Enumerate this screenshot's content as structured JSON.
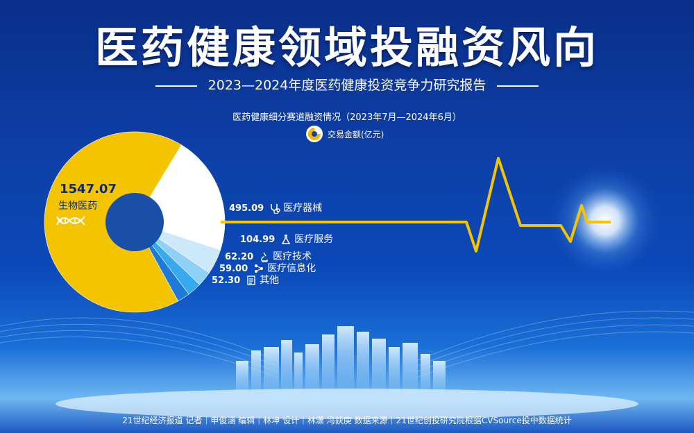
{
  "header": {
    "title": "医药健康领域投融资风向",
    "subtitle": "2023—2024年度医药健康投资竞争力研究报告"
  },
  "chart_data": {
    "type": "pie",
    "title": "医药健康细分赛道融资情况（2023年7月—2024年6月）",
    "legend": [
      {
        "label": "交易金额(亿元)",
        "color": "#f5b800"
      }
    ],
    "slices": [
      {
        "name": "生物医药",
        "value": 1547.07,
        "color": "#f5c400",
        "label_text": "1547.07"
      },
      {
        "name": "医疗器械",
        "value": 495.09,
        "color": "#ffffff",
        "label_text": "495.09"
      },
      {
        "name": "医疗服务",
        "value": 104.99,
        "color": "#cde8fb",
        "label_text": "104.99"
      },
      {
        "name": "医疗技术",
        "value": 62.2,
        "color": "#8fd0f7",
        "label_text": "62.20"
      },
      {
        "name": "医疗信息化",
        "value": 59.0,
        "color": "#37a9ef",
        "label_text": "59.00"
      },
      {
        "name": "其他",
        "value": 52.3,
        "color": "#1e79d8",
        "label_text": "52.30"
      }
    ]
  },
  "footer": {
    "credits": "21世纪经济报道  记者｜申俊涵   编辑｜林坤   设计｜林潇  冯荻庚   数据来源｜21世纪创投研究院根据CVSource投中数据统计"
  }
}
